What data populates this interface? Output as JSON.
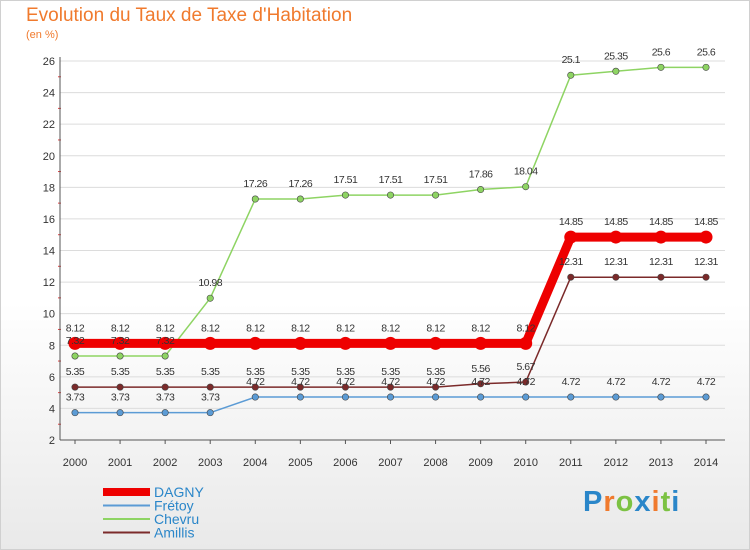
{
  "title": "Evolution du Taux de Taxe d'Habitation",
  "unit": "(en %)",
  "logo": {
    "letters": [
      "P",
      "r",
      "o",
      "x",
      "i",
      "t",
      "i"
    ],
    "colors": [
      "#2a86c9",
      "#f07a2d",
      "#7cc243",
      "#2a86c9",
      "#f07a2d",
      "#7cc243",
      "#2a86c9"
    ]
  },
  "chart_data": {
    "type": "line",
    "x": [
      "2000",
      "2001",
      "2002",
      "2003",
      "2004",
      "2005",
      "2006",
      "2007",
      "2008",
      "2009",
      "2010",
      "2011",
      "2012",
      "2013",
      "2014"
    ],
    "ylim": [
      2,
      26
    ],
    "yticks": [
      "2",
      "4",
      "6",
      "8",
      "10",
      "12",
      "14",
      "16",
      "18",
      "20",
      "22",
      "24",
      "26"
    ],
    "legend_position": "bottom-left",
    "series": [
      {
        "name": "DAGNY",
        "color": "#ee0000",
        "values": [
          8.12,
          8.12,
          8.12,
          8.12,
          8.12,
          8.12,
          8.12,
          8.12,
          8.12,
          8.12,
          8.12,
          14.85,
          14.85,
          14.85,
          14.85
        ],
        "labels": [
          "8.12",
          "8.12",
          "8.12",
          "8.12",
          "8.12",
          "8.12",
          "8.12",
          "8.12",
          "8.12",
          "8.12",
          "8.12",
          "14.85",
          "14.85",
          "14.85",
          "14.85"
        ]
      },
      {
        "name": "Frétoy",
        "color": "#5b9bd5",
        "values": [
          3.73,
          3.73,
          3.73,
          3.73,
          4.72,
          4.72,
          4.72,
          4.72,
          4.72,
          4.72,
          4.72,
          4.72,
          4.72,
          4.72,
          4.72
        ],
        "labels": [
          "3.73",
          "3.73",
          "3.73",
          "3.73",
          "4.72",
          "4.72",
          "4.72",
          "4.72",
          "4.72",
          "4.72",
          "4.72",
          "4.72",
          "4.72",
          "4.72",
          "4.72"
        ]
      },
      {
        "name": "Chevru",
        "color": "#8ed463",
        "values": [
          7.32,
          7.32,
          7.32,
          10.98,
          17.26,
          17.26,
          17.51,
          17.51,
          17.51,
          17.86,
          18.04,
          25.1,
          25.35,
          25.6,
          25.6
        ],
        "labels": [
          "7.32",
          "7.32",
          "7.32",
          "10.98",
          "17.26",
          "17.26",
          "17.51",
          "17.51",
          "17.51",
          "17.86",
          "18.04",
          "25.1",
          "25.35",
          "25.6",
          "25.6"
        ]
      },
      {
        "name": "Amillis",
        "color": "#7b2a2a",
        "values": [
          5.35,
          5.35,
          5.35,
          5.35,
          5.35,
          5.35,
          5.35,
          5.35,
          5.35,
          5.56,
          5.67,
          12.31,
          12.31,
          12.31,
          12.31
        ],
        "labels": [
          "5.35",
          "5.35",
          "5.35",
          "5.35",
          "5.35",
          "5.35",
          "5.35",
          "5.35",
          "5.35",
          "5.56",
          "5.67",
          "12.31",
          "12.31",
          "12.31",
          "12.31"
        ]
      }
    ]
  }
}
